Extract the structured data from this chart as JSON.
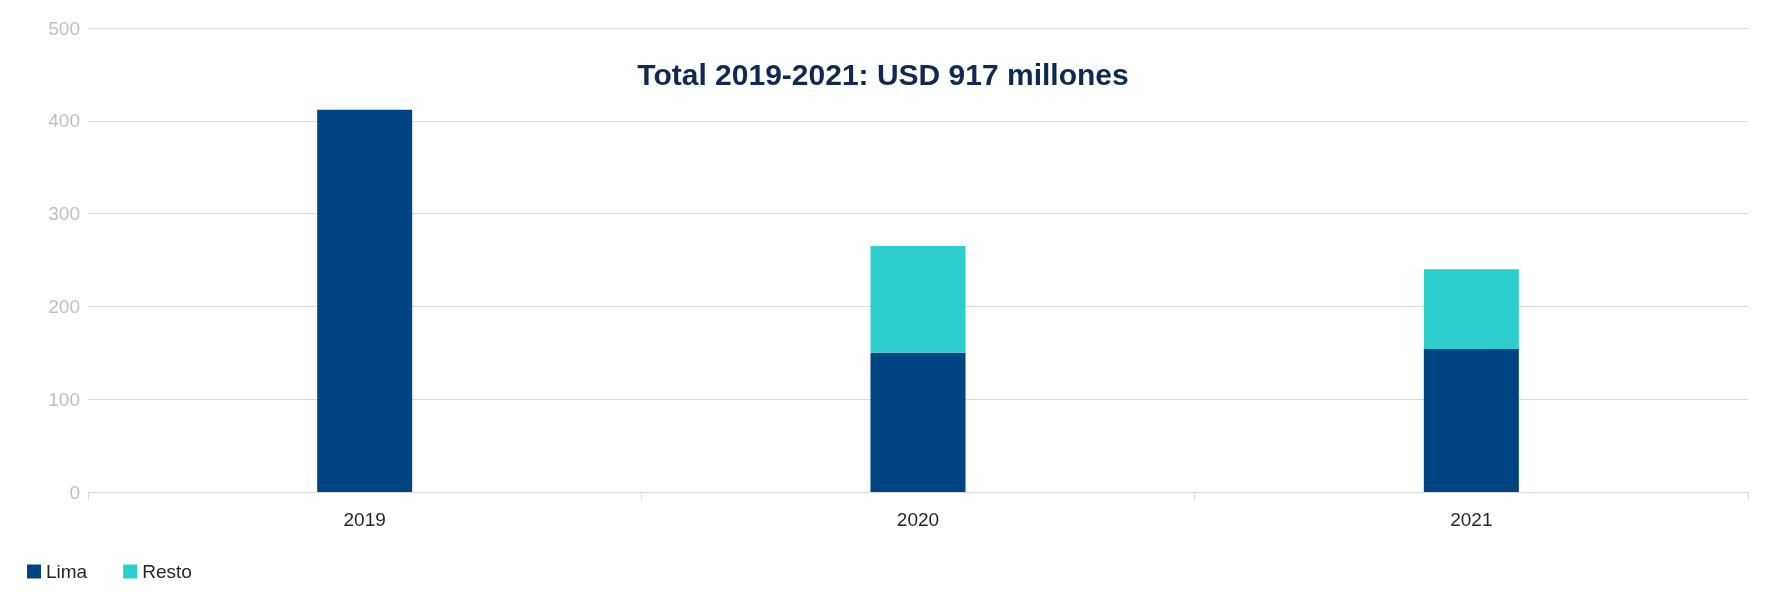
{
  "chart_data": {
    "type": "bar",
    "stacked": true,
    "categories": [
      "2019",
      "2020",
      "2021"
    ],
    "series": [
      {
        "name": "Lima",
        "color": "#004582",
        "values": [
          412,
          150,
          154
        ]
      },
      {
        "name": "Resto",
        "color": "#2dcccd",
        "values": [
          null,
          115,
          86
        ]
      }
    ],
    "ylim": [
      0,
      500
    ],
    "yticks": [
      0,
      100,
      200,
      300,
      400,
      500
    ],
    "grid": "y",
    "legend": "bottom left",
    "annotations": [
      "Total 2019-2021: USD 917 millones"
    ]
  }
}
